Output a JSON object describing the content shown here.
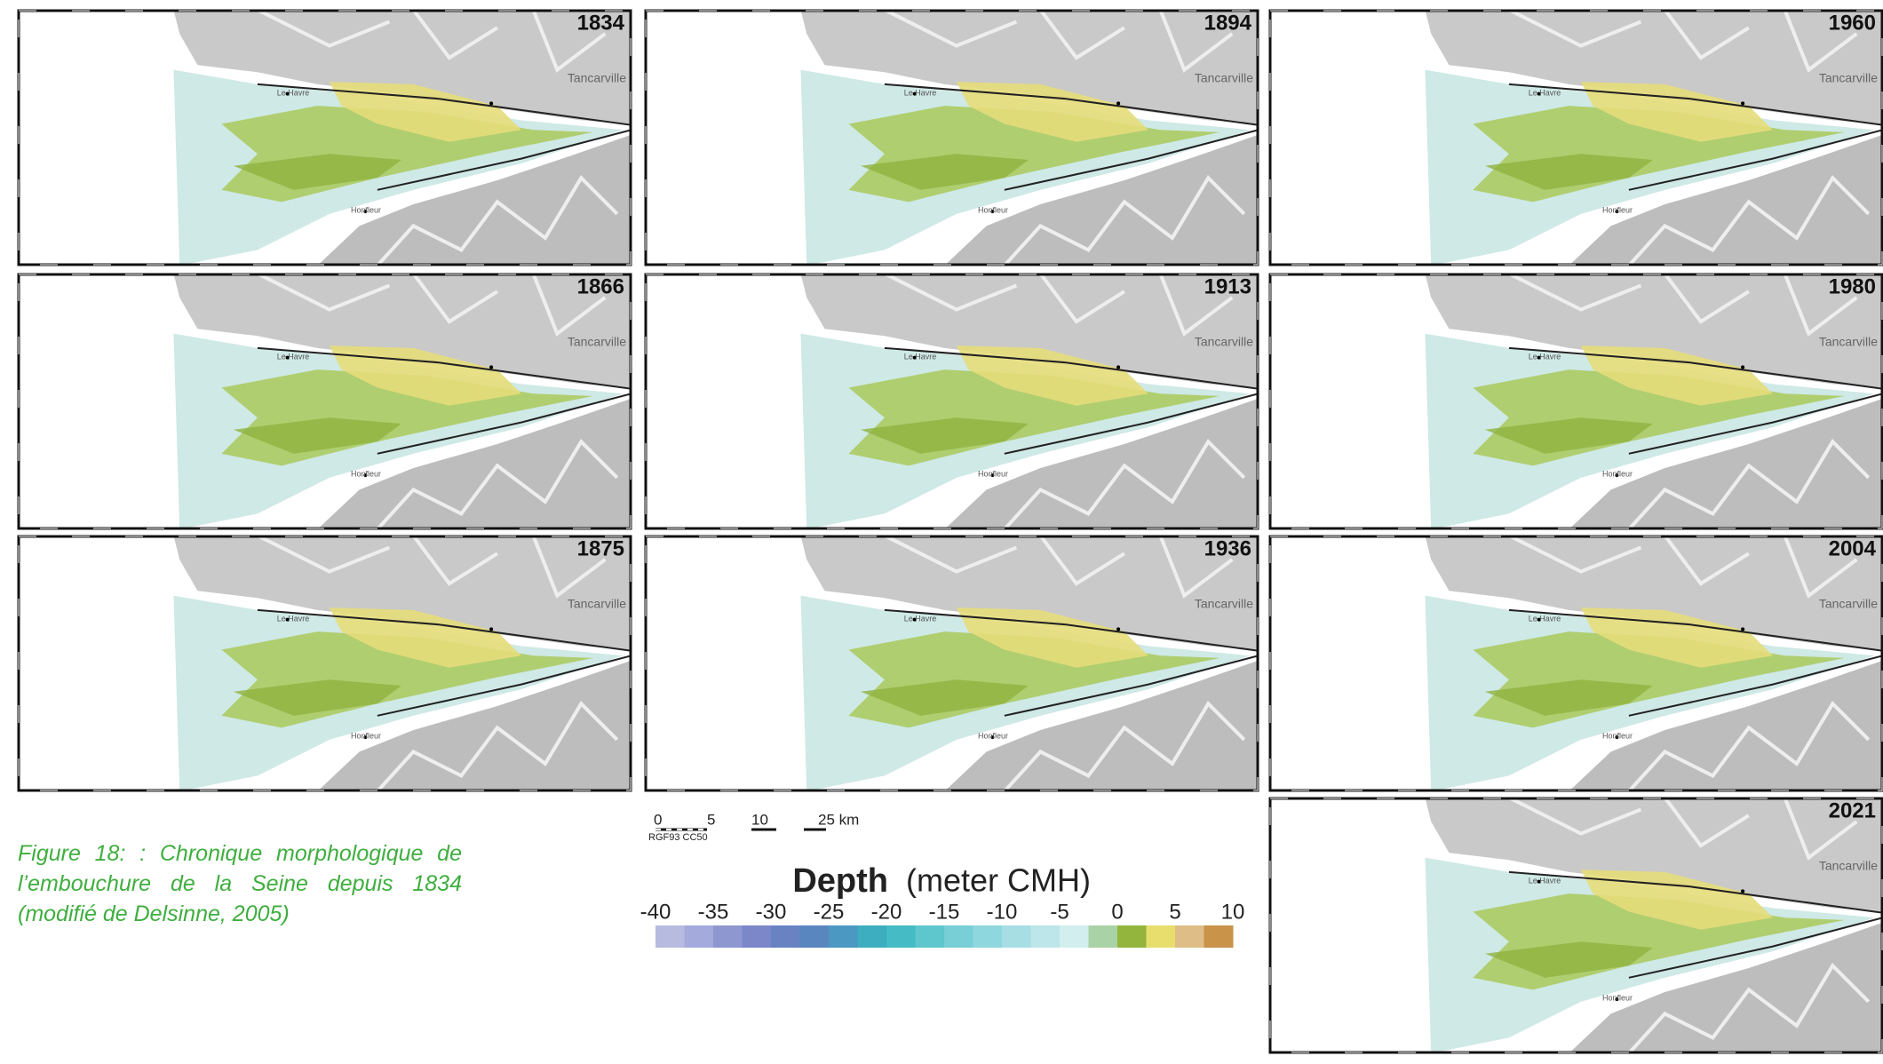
{
  "panels": [
    {
      "year": "1834"
    },
    {
      "year": "1894"
    },
    {
      "year": "1960"
    },
    {
      "year": "1866"
    },
    {
      "year": "1913"
    },
    {
      "year": "1980"
    },
    {
      "year": "1875"
    },
    {
      "year": "1936"
    },
    {
      "year": "2004"
    },
    {
      "year": "2021"
    }
  ],
  "place_names": [
    "Le Havre",
    "Tancarville",
    "Honfleur"
  ],
  "scale_bar": {
    "ticks": [
      "0",
      "5",
      "10",
      "25 km"
    ],
    "crs": "RGF93 CC50"
  },
  "caption": "Figure 18: : Chronique morphologique de l’embouchure de la Seine depuis 1834 (modifié de Delsinne, 2005)",
  "legend": {
    "title": "Depth",
    "unit": "(meter CMH)",
    "ticks": [
      -40,
      -35,
      -30,
      -25,
      -20,
      -15,
      -10,
      -5,
      0,
      5,
      10
    ],
    "colors": [
      "#b6bbdf",
      "#a4aadb",
      "#8f97d1",
      "#7b87c8",
      "#6882c2",
      "#5a86c0",
      "#4b98c3",
      "#3caebf",
      "#45bcc5",
      "#5ec6cd",
      "#78cfd6",
      "#8fd7de",
      "#a6dee4",
      "#bde6ea",
      "#d2eeee",
      "#a9d3a6",
      "#93b53e",
      "#e7de6e",
      "#dfbd86",
      "#c9934a"
    ]
  }
}
